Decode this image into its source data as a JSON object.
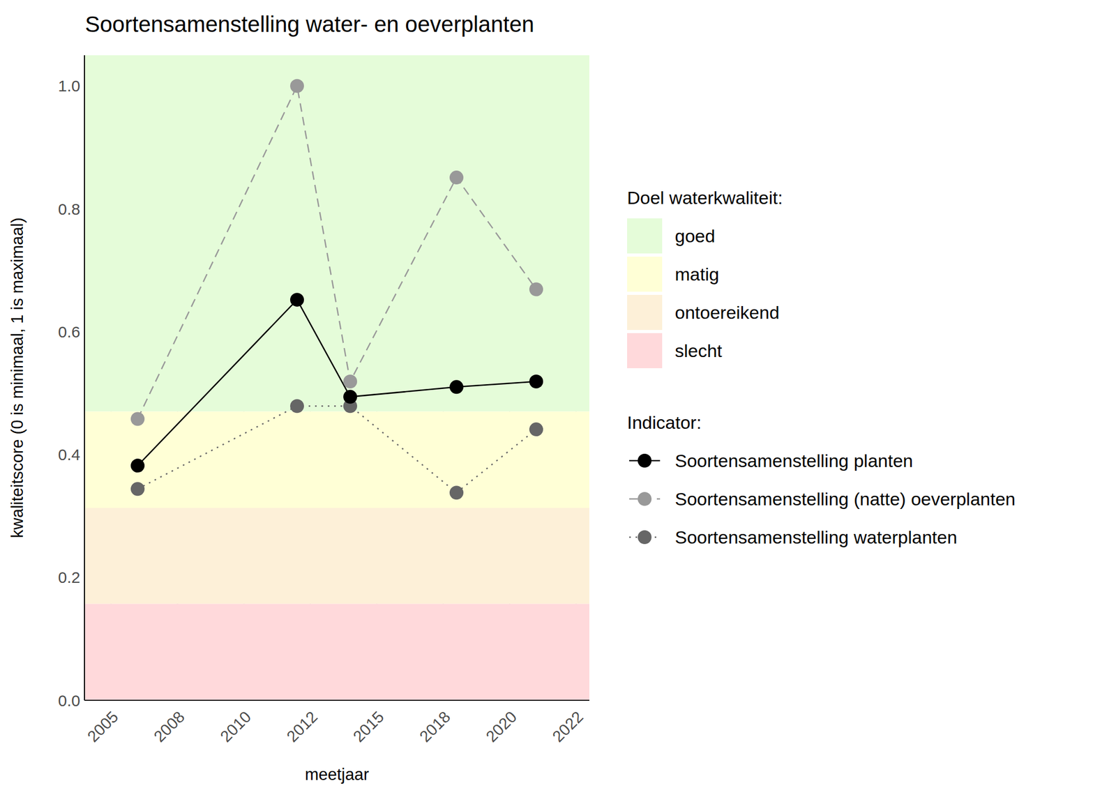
{
  "chart_data": {
    "type": "line",
    "title": "Soortensamenstelling water- en oeverplanten",
    "x_label": "meetjaar",
    "y_label": "kwaliteitscore (0 is minimaal, 1 is maximaal)",
    "x": [
      2006,
      2012,
      2014,
      2018,
      2021
    ],
    "xlim": [
      2004,
      2023
    ],
    "xticks": [
      2005,
      {
        "value": 2007.5,
        "label": "2008"
      },
      2010,
      {
        "value": 2012.5,
        "label": "2012"
      },
      2015,
      {
        "value": 2017.5,
        "label": "2018"
      },
      2020,
      {
        "value": 2022.5,
        "label": "2022"
      }
    ],
    "ylim": [
      0,
      1.05
    ],
    "yticks": [
      {
        "value": 0,
        "label": "0.0"
      },
      0.2,
      0.4,
      0.6,
      0.8,
      {
        "value": 1,
        "label": "1.0"
      }
    ],
    "grid": true,
    "bands_title": "Doel waterkwaliteit:",
    "bands": [
      {
        "name": "goed",
        "from": 0.47,
        "to": 1.05,
        "color": "#e5fcd9"
      },
      {
        "name": "matig",
        "from": 0.313,
        "to": 0.47,
        "color": "#ffffd6"
      },
      {
        "name": "ontoereikend",
        "from": 0.157,
        "to": 0.313,
        "color": "#fdf0d8"
      },
      {
        "name": "slecht",
        "from": 0,
        "to": 0.157,
        "color": "#ffd9db"
      }
    ],
    "legend_title": "Indicator:",
    "series": [
      {
        "name": "Soortensamenstelling planten",
        "color": "#000000",
        "marker": "circle",
        "line_style": "solid",
        "values": [
          0.382,
          0.652,
          0.494,
          0.51,
          0.519
        ]
      },
      {
        "name": "Soortensamenstelling (natte) oeverplanten",
        "color": "#999999",
        "marker": "circle",
        "line_style": "dashed",
        "values": [
          0.458,
          1.0,
          0.519,
          0.851,
          0.669
        ]
      },
      {
        "name": "Soortensamenstelling waterplanten",
        "color": "#666666",
        "marker": "circle",
        "line_style": "dotted",
        "values": [
          0.344,
          0.479,
          0.479,
          0.338,
          0.441
        ]
      }
    ]
  }
}
